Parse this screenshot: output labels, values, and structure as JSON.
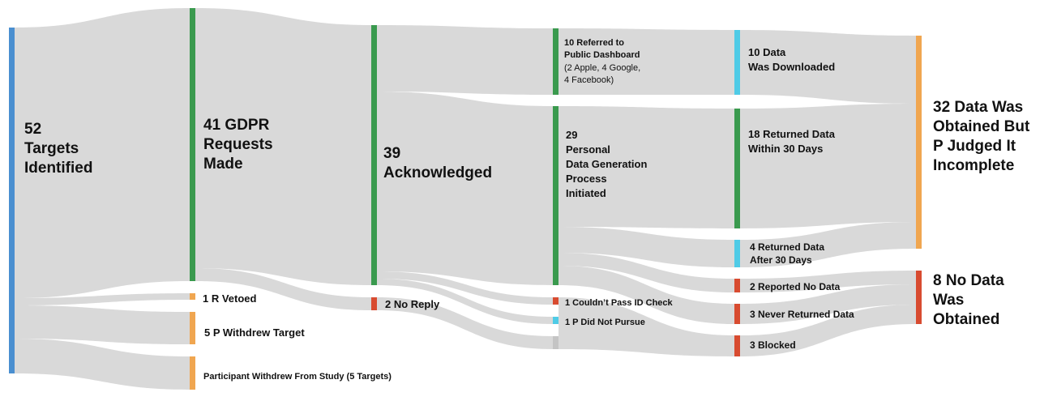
{
  "colors": {
    "blue": "#4a8fd0",
    "green": "#3a9a4e",
    "orange": "#f0a650",
    "red": "#d84b30",
    "cyan": "#4fcbe6",
    "gray": "#c4c4c4",
    "flow": "#d9d9d9"
  },
  "nodes": {
    "targets": {
      "line1": "52",
      "line2": "Targets",
      "line3": "Identified"
    },
    "gdpr": {
      "line1": "41 GDPR",
      "line2": "Requests",
      "line3": "Made"
    },
    "r_vetoed": {
      "text": "1 R Vetoed"
    },
    "p_withdrew": {
      "text": "5 P Withdrew Target"
    },
    "study_withdrew": {
      "text": "Participant Withdrew From Study (5 Targets)"
    },
    "acknowledged": {
      "line1": "39",
      "line2": "Acknowledged"
    },
    "no_reply": {
      "text": "2 No Reply"
    },
    "dashboard": {
      "line1": "10 Referred to",
      "line2": "Public Dashboard",
      "note1": "(2 Apple, 4 Google,",
      "note2": "4 Facebook)"
    },
    "process": {
      "line1": "29",
      "line2": "Personal",
      "line3": "Data Generation",
      "line4": "Process",
      "line5": "Initiated"
    },
    "id_check": {
      "text": "1 Couldn’t Pass ID Check"
    },
    "not_pursue": {
      "text": "1 P Did Not Pursue"
    },
    "downloaded": {
      "line1": "10 Data",
      "line2": "Was Downloaded"
    },
    "returned30": {
      "line1": "18 Returned Data",
      "line2": "Within 30 Days"
    },
    "after30": {
      "line1": "4 Returned Data",
      "line2": "After 30 Days"
    },
    "reported_no": {
      "text": "2 Reported No Data"
    },
    "never": {
      "text": "3 Never Returned Data"
    },
    "blocked": {
      "text": "3 Blocked"
    },
    "obtained": {
      "line1": "32 Data Was",
      "line2": "Obtained But",
      "line3": "P Judged It",
      "line4": "Incomplete"
    },
    "no_data": {
      "line1": "8 No Data",
      "line2": "Was",
      "line3": "Obtained"
    }
  }
}
